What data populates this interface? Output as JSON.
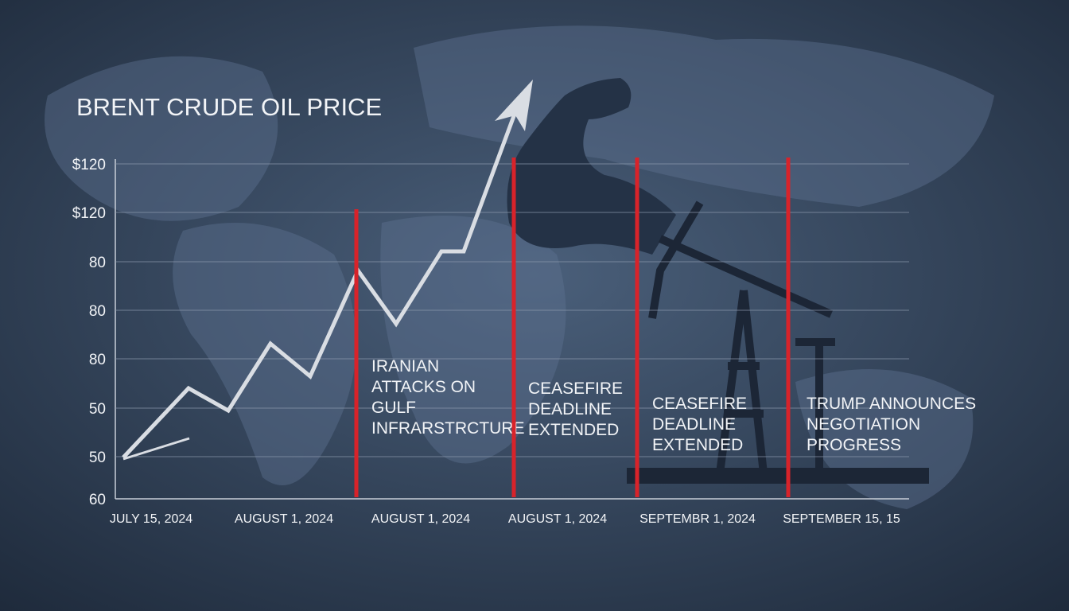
{
  "title": "BRENT CRUDE OIL PRICE",
  "y_axis_labels": [
    "$120",
    "$120",
    "80",
    "80",
    "80",
    "50",
    "50",
    "60"
  ],
  "x_axis_labels": [
    "JULY 15, 2024",
    "AUGUST 1, 2024",
    "AUGUST 1, 2024",
    "AUGUST 1, 2024",
    "SEPTEMBR 1, 2024",
    "SEPTEMBER 15, 15"
  ],
  "annotations": [
    {
      "lines": [
        "IRANIAN",
        "ATTACKS ON",
        "GULF",
        "INFRARSTRCTURE"
      ]
    },
    {
      "lines": [
        "CEASEFIRE",
        "DEADLINE",
        "EXTENDED"
      ]
    },
    {
      "lines": [
        "CEASEFIRE",
        "DEADLINE",
        "EXTENDED"
      ]
    },
    {
      "lines": [
        "TRUMP ANNOUNCES",
        "NEGOTIATION",
        "PROGRESS"
      ]
    }
  ]
}
